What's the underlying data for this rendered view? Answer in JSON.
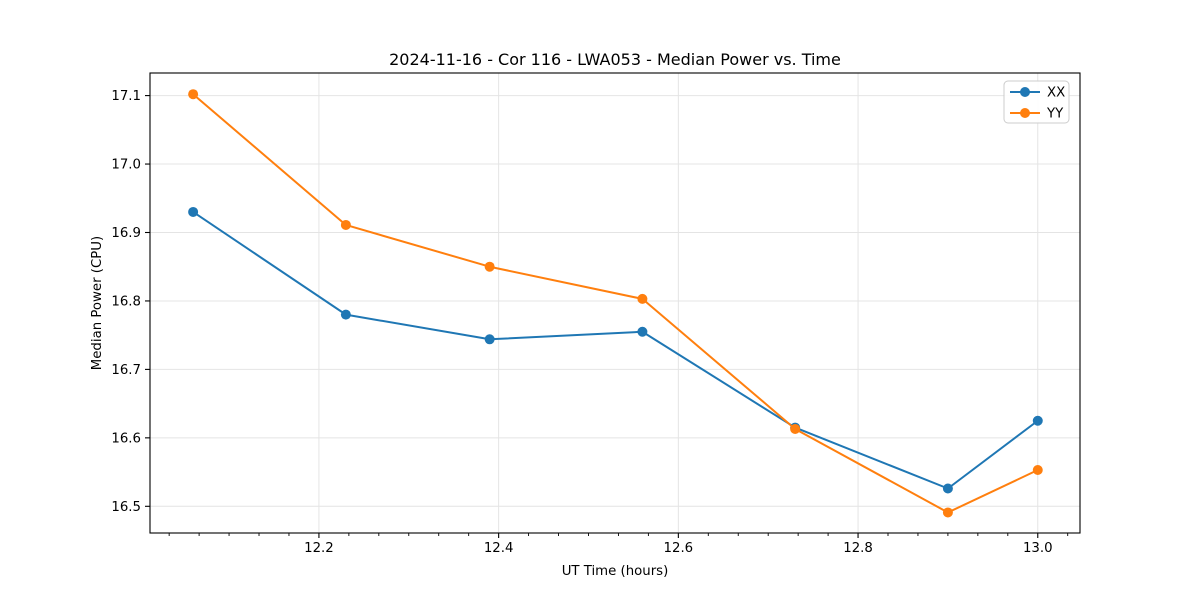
{
  "chart_data": {
    "type": "line",
    "title": "2024-11-16 - Cor 116 - LWA053 - Median Power vs. Time",
    "xlabel": "UT Time (hours)",
    "ylabel": "Median Power (CPU)",
    "xlim": [
      12.012,
      13.047
    ],
    "ylim": [
      16.461,
      17.133
    ],
    "xticks": [
      12.2,
      12.4,
      12.6,
      12.8,
      13.0
    ],
    "yticks": [
      16.5,
      16.6,
      16.7,
      16.8,
      16.9,
      17.0,
      17.1
    ],
    "x_minor_step": 0.0333333,
    "grid": true,
    "legend_position": "top-right",
    "x": [
      12.06,
      12.23,
      12.39,
      12.56,
      12.73,
      12.9,
      13.0
    ],
    "series": [
      {
        "name": "XX",
        "color": "#1f77b4",
        "values": [
          16.93,
          16.78,
          16.744,
          16.755,
          16.615,
          16.526,
          16.625
        ]
      },
      {
        "name": "YY",
        "color": "#ff7f0e",
        "values": [
          17.102,
          16.911,
          16.85,
          16.803,
          16.613,
          16.491,
          16.553
        ]
      }
    ]
  },
  "colors": {
    "grid": "#e4e4e4",
    "spine": "#000000",
    "tick": "#000000",
    "legend_border": "#cccccc",
    "legend_bg": "#ffffff"
  }
}
